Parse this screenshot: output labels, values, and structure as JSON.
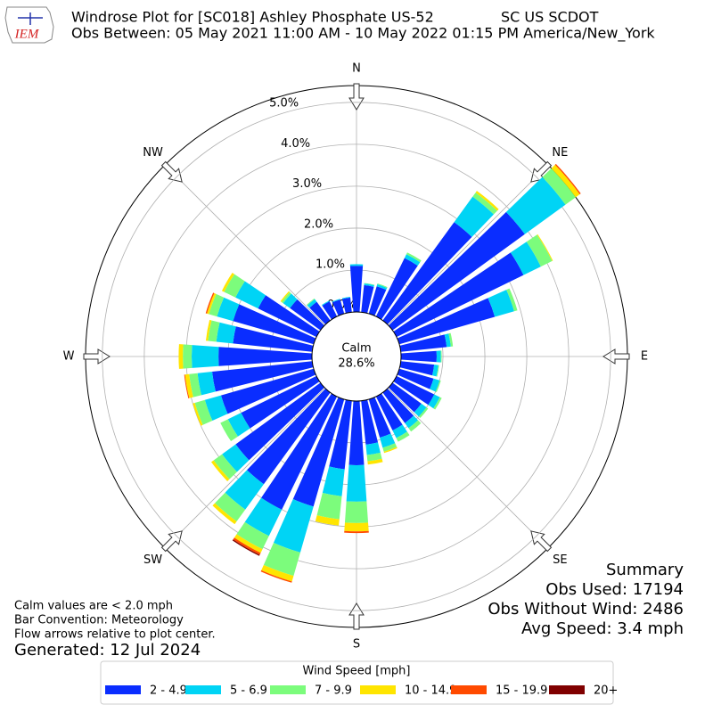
{
  "logo": "IEM",
  "chart_data": {
    "type": "windrose",
    "title": "Windrose Plot for [SC018] Ashley Phosphate US-52",
    "network": "SC US SCDOT",
    "subtitle": "Obs Between: 05 May 2021 11:00 AM - 10 May 2022 01:15 PM America/New_York",
    "x": [
      0,
      10,
      20,
      30,
      40,
      50,
      60,
      70,
      80,
      90,
      100,
      110,
      120,
      130,
      140,
      150,
      160,
      170,
      180,
      190,
      200,
      210,
      220,
      230,
      240,
      250,
      260,
      270,
      280,
      290,
      300,
      310,
      320,
      330,
      340,
      350
    ],
    "xlim": [
      0,
      360
    ],
    "xticks": [
      {
        "value": 0,
        "label": "N"
      },
      {
        "value": 45,
        "label": "NE"
      },
      {
        "value": 90,
        "label": "E"
      },
      {
        "value": 135,
        "label": "SE"
      },
      {
        "value": 180,
        "label": "S"
      },
      {
        "value": 225,
        "label": "SW"
      },
      {
        "value": 270,
        "label": "W"
      },
      {
        "value": 315,
        "label": "NW"
      }
    ],
    "ylim": [
      0,
      5.4
    ],
    "yticks": [
      {
        "value": 0,
        "label": "0.0%"
      },
      {
        "value": 1,
        "label": "1.0%"
      },
      {
        "value": 2,
        "label": "2.0%"
      },
      {
        "value": 3,
        "label": "3.0%"
      },
      {
        "value": 4,
        "label": "4.0%"
      },
      {
        "value": 5,
        "label": "5.0%"
      }
    ],
    "grid": true,
    "calm": {
      "text": "Calm",
      "value": 28.6,
      "value_label": "28.6%"
    },
    "legend_title": "Wind Speed [mph]",
    "series": [
      {
        "name": "2 - 4.9",
        "color": "#0a2dff",
        "values": [
          1.1,
          0.65,
          0.68,
          1.55,
          2.9,
          3.9,
          3.37,
          2.37,
          1.1,
          0.85,
          0.8,
          0.85,
          1.0,
          0.85,
          0.9,
          0.9,
          0.95,
          1.05,
          1.53,
          1.64,
          2.66,
          3.0,
          2.7,
          2.5,
          2.0,
          2.3,
          2.4,
          2.23,
          1.9,
          2.0,
          1.55,
          0.9,
          0.55,
          0.4,
          0.35,
          0.35
        ]
      },
      {
        "name": "5 - 6.9",
        "color": "#00d4f5",
        "values": [
          0.04,
          0.04,
          0.05,
          0.1,
          0.75,
          1.2,
          0.46,
          0.48,
          0.1,
          0.1,
          0.1,
          0.15,
          0.15,
          0.15,
          0.15,
          0.2,
          0.25,
          0.25,
          0.87,
          0.65,
          1.14,
          0.7,
          0.75,
          0.4,
          0.35,
          0.4,
          0.35,
          0.64,
          0.4,
          0.4,
          0.6,
          0.2,
          0.08,
          0.02,
          0.02,
          0.02
        ]
      },
      {
        "name": "7 - 9.9",
        "color": "#7cfc7c",
        "values": [
          0,
          0.01,
          0.02,
          0.05,
          0.12,
          0.3,
          0.3,
          0.08,
          0.05,
          0.02,
          0.02,
          0.03,
          0.05,
          0.05,
          0.1,
          0.1,
          0.1,
          0.15,
          0.51,
          0.55,
          0.58,
          0.35,
          0.35,
          0.25,
          0.2,
          0.25,
          0.2,
          0.21,
          0.2,
          0.2,
          0.3,
          0.05,
          0.02,
          0,
          0,
          0
        ]
      },
      {
        "name": "10 - 14.9",
        "color": "#ffe500",
        "values": [
          0,
          0,
          0,
          0,
          0.05,
          0.12,
          0.02,
          0,
          0,
          0,
          0,
          0,
          0,
          0,
          0,
          0,
          0.03,
          0.08,
          0.2,
          0.15,
          0.14,
          0.1,
          0.08,
          0.07,
          0,
          0.05,
          0.1,
          0.1,
          0.05,
          0.05,
          0.06,
          0.03,
          0,
          0,
          0,
          0
        ]
      },
      {
        "name": "15 - 19.9",
        "color": "#ff4a00",
        "values": [
          0,
          0,
          0,
          0,
          0,
          0.03,
          0,
          0,
          0,
          0,
          0,
          0,
          0,
          0,
          0,
          0,
          0,
          0,
          0.04,
          0,
          0.03,
          0.05,
          0,
          0,
          0,
          0,
          0.02,
          0,
          0,
          0.03,
          0,
          0,
          0,
          0,
          0,
          0
        ]
      },
      {
        "name": "20+",
        "color": "#800000",
        "values": [
          0,
          0,
          0,
          0,
          0,
          0,
          0,
          0,
          0,
          0,
          0,
          0,
          0,
          0,
          0,
          0,
          0,
          0,
          0,
          0,
          0,
          0.03,
          0,
          0,
          0,
          0,
          0,
          0,
          0,
          0,
          0,
          0,
          0,
          0,
          0,
          0
        ]
      }
    ],
    "summary": {
      "title": "Summary",
      "lines": [
        "Obs Used: 17194",
        "Obs Without Wind: 2486",
        "Avg Speed: 3.4 mph"
      ]
    },
    "notes": [
      "Calm values are < 2.0 mph",
      "Bar Convention: Meteorology",
      "Flow arrows relative to plot center."
    ],
    "generated": "Generated: 12 Jul 2024"
  }
}
